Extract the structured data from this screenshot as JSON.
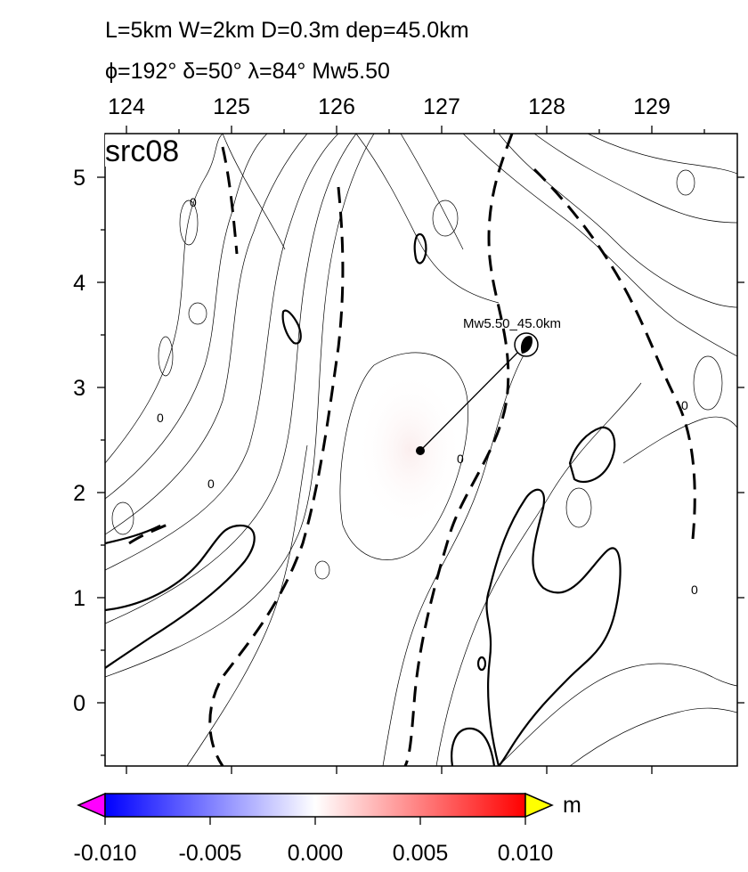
{
  "title": {
    "line1": "L=5km W=2km D=0.3m dep=45.0km",
    "line2": "ϕ=192° δ=50° λ=84° Mw5.50"
  },
  "panel_label": "src08",
  "x_axis": {
    "ticks": [
      "124",
      "125",
      "126",
      "127",
      "128",
      "129"
    ]
  },
  "y_axis": {
    "ticks": [
      "5",
      "4",
      "3",
      "2",
      "1",
      "0"
    ]
  },
  "contour_zero_labels": [
    "0",
    "0",
    "0",
    "0",
    "0",
    "0"
  ],
  "source": {
    "label": "Mw5.50_45.0km",
    "mechanism": "thrust"
  },
  "colorbar": {
    "unit": "m",
    "tick_labels": [
      "-0.010",
      "-0.005",
      "0.000",
      "0.005",
      "0.010"
    ],
    "min": -0.01,
    "max": 0.01,
    "colors": {
      "low": "#0000ff",
      "mid": "#ffffff",
      "high": "#ff0000",
      "under": "#ff00ff",
      "over": "#ffff00"
    }
  }
}
